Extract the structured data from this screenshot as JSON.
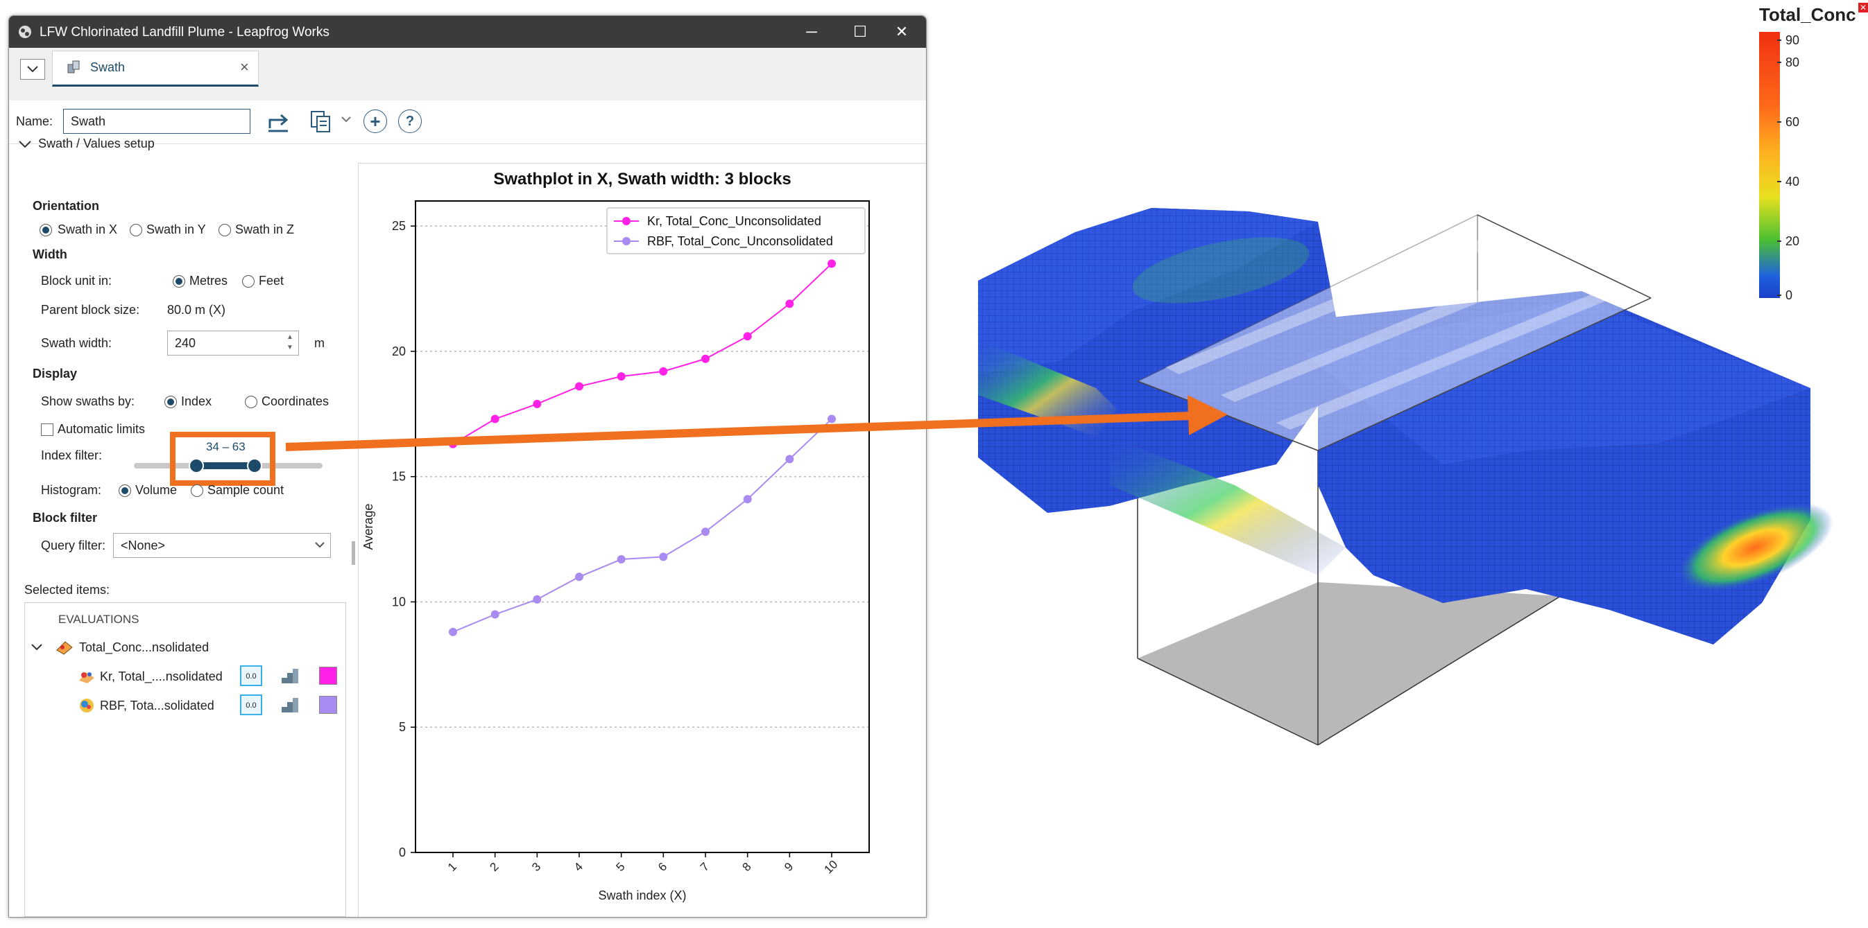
{
  "app": {
    "title": "LFW Chlorinated Landfill Plume - Leapfrog Works"
  },
  "window_controls": {
    "minimize": "─",
    "maximize": "☐",
    "close": "✕"
  },
  "tab": {
    "label": "Swath",
    "close": "×"
  },
  "toolbar": {
    "name_label": "Name:",
    "name_value": "Swath"
  },
  "setup": {
    "header": "Swath / Values setup"
  },
  "orientation": {
    "title": "Orientation",
    "options": [
      "Swath in X",
      "Swath in Y",
      "Swath in Z"
    ],
    "selected": "Swath in X"
  },
  "width": {
    "title": "Width",
    "block_unit_label": "Block unit in:",
    "unit_options": [
      "Metres",
      "Feet"
    ],
    "unit_selected": "Metres",
    "parent_block_label": "Parent block size:",
    "parent_block_value": "80.0 m  (X)",
    "swath_width_label": "Swath width:",
    "swath_width_value": "240",
    "swath_width_unit": "m"
  },
  "display": {
    "title": "Display",
    "show_by_label": "Show swaths by:",
    "show_by_options": [
      "Index",
      "Coordinates"
    ],
    "show_by_selected": "Index",
    "auto_limits_label": "Automatic limits",
    "auto_limits_checked": false,
    "index_filter_label": "Index filter:",
    "index_filter_range": "34 – 63",
    "histogram_label": "Histogram:",
    "histogram_options": [
      "Volume",
      "Sample count"
    ],
    "histogram_selected": "Volume"
  },
  "block_filter": {
    "title": "Block filter",
    "query_label": "Query filter:",
    "query_value": "<None>"
  },
  "selected_items": {
    "title": "Selected items:",
    "group": "EVALUATIONS",
    "parent": "Total_Conc...nsolidated",
    "children": [
      {
        "label": "Kr, Total_....nsolidated",
        "color": "#ff22e6"
      },
      {
        "label": "RBF, Tota...solidated",
        "color": "#a98af0"
      }
    ],
    "stats_icon": "0.0"
  },
  "chart_data": {
    "type": "line",
    "title": "Swathplot in X, Swath width: 3 blocks",
    "xlabel": "Swath index (X)",
    "ylabel": "Average",
    "categories": [
      "1",
      "2",
      "3",
      "4",
      "5",
      "6",
      "7",
      "8",
      "9",
      "10"
    ],
    "ylim": [
      0,
      26
    ],
    "yticks": [
      0,
      5,
      10,
      15,
      20,
      25
    ],
    "grid": "horizontal dashed",
    "legend_position": "top-right",
    "series": [
      {
        "name": "Kr, Total_Conc_Unconsolidated",
        "color": "#ff22e6",
        "values": [
          16.3,
          17.3,
          17.9,
          18.6,
          19.0,
          19.2,
          19.7,
          20.6,
          21.9,
          23.5
        ]
      },
      {
        "name": "RBF, Total_Conc_Unconsolidated",
        "color": "#a98af0",
        "values": [
          8.8,
          9.5,
          10.1,
          11.0,
          11.7,
          11.8,
          12.8,
          14.1,
          15.7,
          17.3
        ]
      }
    ]
  },
  "legend_3d": {
    "title": "Total_Conc",
    "ticks": [
      "90",
      "80",
      "60",
      "40",
      "20",
      "0"
    ]
  },
  "colors": {
    "highlight": "#f07020",
    "accent": "#1e4a6a",
    "block_blue": "#2a4fd8"
  }
}
